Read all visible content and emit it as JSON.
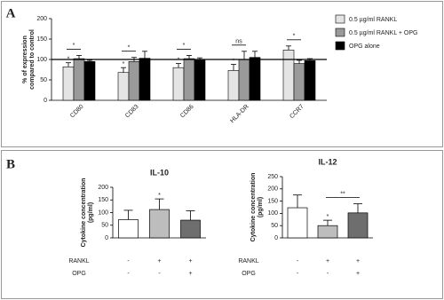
{
  "chart_data": [
    {
      "type": "grouped-bar",
      "panel": "A",
      "ylabel": [
        "% of expression",
        "compared to control"
      ],
      "categories": [
        "CD80",
        "CD83",
        "CD86",
        "HLA-DR",
        "CCR7"
      ],
      "series": [
        {
          "name": "0.5 µg/ml RANKL",
          "color": "#e4e4e4",
          "values": [
            82,
            68,
            80,
            73,
            123
          ],
          "errors": [
            10,
            12,
            10,
            15,
            10
          ]
        },
        {
          "name": "0.5 µg/ml RANKL + OPG",
          "color": "#9a9a9a",
          "values": [
            102,
            95,
            102,
            100,
            90
          ],
          "errors": [
            8,
            10,
            8,
            20,
            8
          ]
        },
        {
          "name": "OPG alone",
          "color": "#000000",
          "values": [
            95,
            103,
            98,
            105,
            97
          ],
          "errors": [
            3,
            17,
            6,
            15,
            5
          ]
        }
      ],
      "reference_line": 100,
      "ylim": [
        0,
        200
      ],
      "yticks": [
        0,
        50,
        100,
        150,
        200
      ],
      "annotations": [
        {
          "text": "*",
          "category": 0,
          "series": [
            0
          ]
        },
        {
          "text": "*",
          "category": 0,
          "series": [
            0,
            1
          ]
        },
        {
          "text": "*",
          "category": 1,
          "series": [
            0
          ]
        },
        {
          "text": "*",
          "category": 1,
          "series": [
            0,
            1
          ]
        },
        {
          "text": "*",
          "category": 2,
          "series": [
            0
          ]
        },
        {
          "text": "*",
          "category": 2,
          "series": [
            0,
            1
          ]
        },
        {
          "text": "*",
          "category": 3,
          "series": [
            0
          ]
        },
        {
          "text": "ns",
          "category": 3,
          "series": [
            0,
            1
          ]
        },
        {
          "text": "*",
          "category": 4,
          "series": [
            0,
            1
          ]
        }
      ]
    },
    {
      "type": "bar",
      "panel": "B",
      "title": "IL-10",
      "ylabel": [
        "Cytokine concentration",
        "(pg/ml)"
      ],
      "values": [
        72,
        112,
        70
      ],
      "errors": [
        37,
        42,
        37
      ],
      "colors": [
        "#ffffff",
        "#bdbdbd",
        "#6e6e6e"
      ],
      "treatments": [
        {
          "label": "RANKL",
          "marks": [
            "-",
            "+",
            "+"
          ]
        },
        {
          "label": "OPG",
          "marks": [
            "-",
            "-",
            "+"
          ]
        }
      ],
      "ylim": [
        0,
        200
      ],
      "yticks": [
        0,
        50,
        100,
        150,
        200
      ],
      "annotations": [
        {
          "text": "*",
          "bars": [
            1
          ]
        }
      ]
    },
    {
      "type": "bar",
      "title": "IL-12",
      "ylabel": [
        "Cytokine concentration",
        "(pg/ml)"
      ],
      "values": [
        123,
        50,
        102
      ],
      "errors": [
        52,
        22,
        37
      ],
      "colors": [
        "#ffffff",
        "#bdbdbd",
        "#6e6e6e"
      ],
      "treatments": [
        {
          "label": "RANKL",
          "marks": [
            "-",
            "+",
            "+"
          ]
        },
        {
          "label": "OPG",
          "marks": [
            "-",
            "-",
            "+"
          ]
        }
      ],
      "ylim": [
        0,
        250
      ],
      "yticks": [
        0,
        50,
        100,
        150,
        200,
        250
      ],
      "annotations": [
        {
          "text": "*",
          "bars": [
            1
          ]
        },
        {
          "text": "**",
          "bars": [
            1,
            2
          ]
        }
      ]
    }
  ]
}
